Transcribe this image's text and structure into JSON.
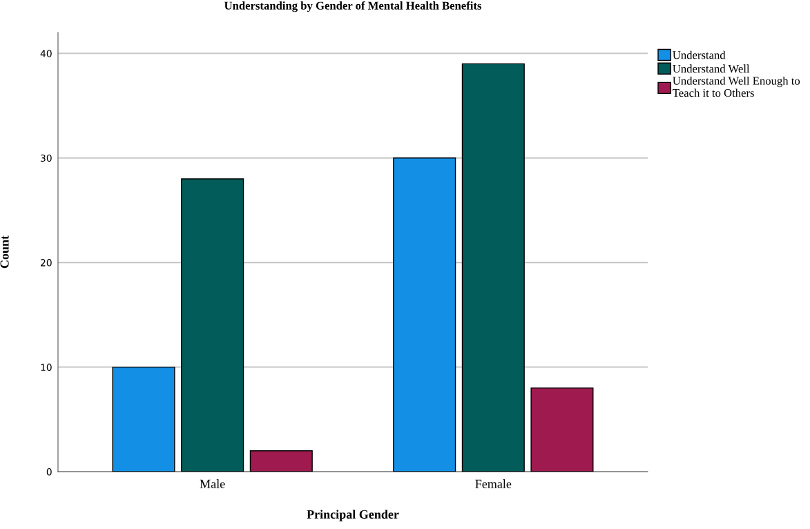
{
  "chart_data": {
    "type": "bar",
    "title": "Understanding by Gender of Mental Health Benefits",
    "xlabel": "Principal Gender",
    "ylabel": "Count",
    "categories": [
      "Male",
      "Female"
    ],
    "series": [
      {
        "name": "Understand",
        "color": "#1390e6",
        "values": [
          10,
          30
        ]
      },
      {
        "name": "Understand Well",
        "color": "#025c5a",
        "values": [
          28,
          39
        ]
      },
      {
        "name": "Understand Well Enough to\nTeach it to Others",
        "color": "#9e1a4f",
        "values": [
          2,
          8
        ]
      }
    ],
    "ylim": [
      0,
      42
    ],
    "yticks": [
      0,
      10,
      20,
      30,
      40
    ],
    "grid": "y",
    "legend": "top right"
  }
}
